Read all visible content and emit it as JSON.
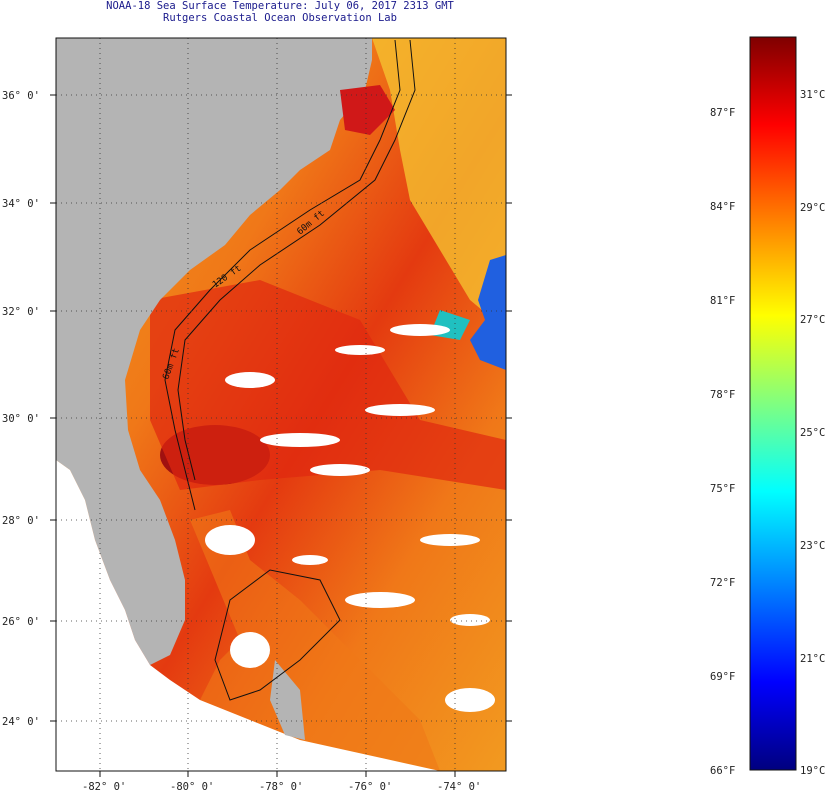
{
  "title": {
    "line1": "NOAA-18 Sea Surface Temperature:  July 06, 2017 2313 GMT",
    "line2": "Rutgers Coastal Ocean Observation Lab"
  },
  "map": {
    "lat_labels": [
      "36° 0'",
      "34° 0'",
      "32° 0'",
      "30° 0'",
      "28° 0'",
      "26° 0'",
      "24° 0'"
    ],
    "lon_labels": [
      "-82° 0'",
      "-80° 0'",
      "-78° 0'",
      "-76° 0'",
      "-74° 0'"
    ],
    "contour_labels": [
      "120 ft",
      "60m ft",
      "60m ft"
    ],
    "colors": {
      "land": "#b4b4b4",
      "ocean_warm": "#f07010",
      "ocean_hot": "#d21010",
      "cloud": "#ffffff"
    }
  },
  "legend": {
    "fahrenheit": [
      "87°F",
      "84°F",
      "81°F",
      "78°F",
      "75°F",
      "72°F",
      "69°F",
      "66°F"
    ],
    "celsius": [
      "31°C",
      "29°C",
      "27°C",
      "25°C",
      "23°C",
      "21°C",
      "19°C"
    ],
    "gradient": [
      "#00007f",
      "#0000ff",
      "#0080ff",
      "#00ffff",
      "#80ff80",
      "#ffff00",
      "#ff8000",
      "#ff0000",
      "#7f0000"
    ]
  }
}
